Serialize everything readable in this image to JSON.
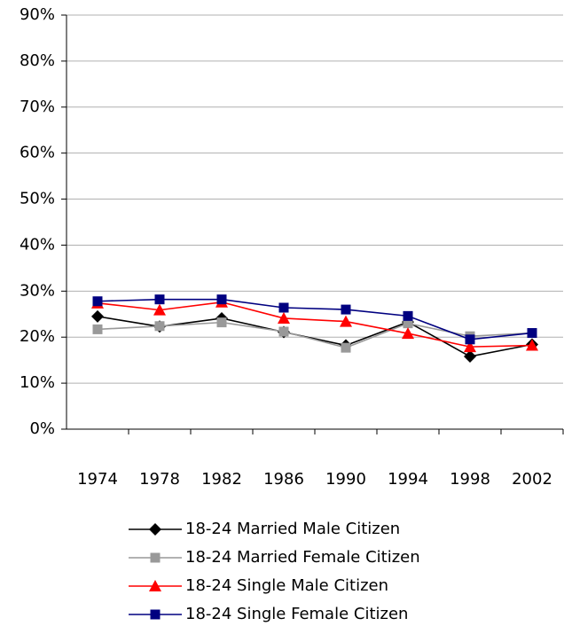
{
  "chart_data": {
    "type": "line",
    "categories": [
      "1974",
      "1978",
      "1982",
      "1986",
      "1990",
      "1994",
      "1998",
      "2002"
    ],
    "series": [
      {
        "name": "18-24 Married Male Citizen",
        "color": "#000000",
        "marker": "diamond",
        "values": [
          24.5,
          22.3,
          24.1,
          21.1,
          18.2,
          23.3,
          15.8,
          18.4
        ]
      },
      {
        "name": "18-24 Married Female Citizen",
        "color": "#999999",
        "marker": "square",
        "values": [
          21.7,
          22.4,
          23.2,
          21.2,
          17.7,
          23.0,
          20.2,
          20.9
        ]
      },
      {
        "name": "18-24 Single Male Citizen",
        "color": "#ff0000",
        "marker": "triangle",
        "values": [
          27.4,
          25.9,
          27.6,
          24.1,
          23.4,
          20.8,
          17.9,
          18.2
        ]
      },
      {
        "name": "18-24 Single Female Citizen",
        "color": "#000080",
        "marker": "square",
        "values": [
          27.8,
          28.2,
          28.2,
          26.4,
          26.0,
          24.6,
          19.5,
          20.9
        ]
      }
    ],
    "ylim": [
      0,
      90
    ],
    "yticks": [
      {
        "value": 0,
        "label": "0%"
      },
      {
        "value": 10,
        "label": "10%"
      },
      {
        "value": 20,
        "label": "20%"
      },
      {
        "value": 30,
        "label": "30%"
      },
      {
        "value": 40,
        "label": "40%"
      },
      {
        "value": 50,
        "label": "50%"
      },
      {
        "value": 60,
        "label": "60%"
      },
      {
        "value": 70,
        "label": "70%"
      },
      {
        "value": 80,
        "label": "80%"
      },
      {
        "value": 90,
        "label": "90%"
      }
    ],
    "grid": true,
    "legend": "bottom"
  }
}
